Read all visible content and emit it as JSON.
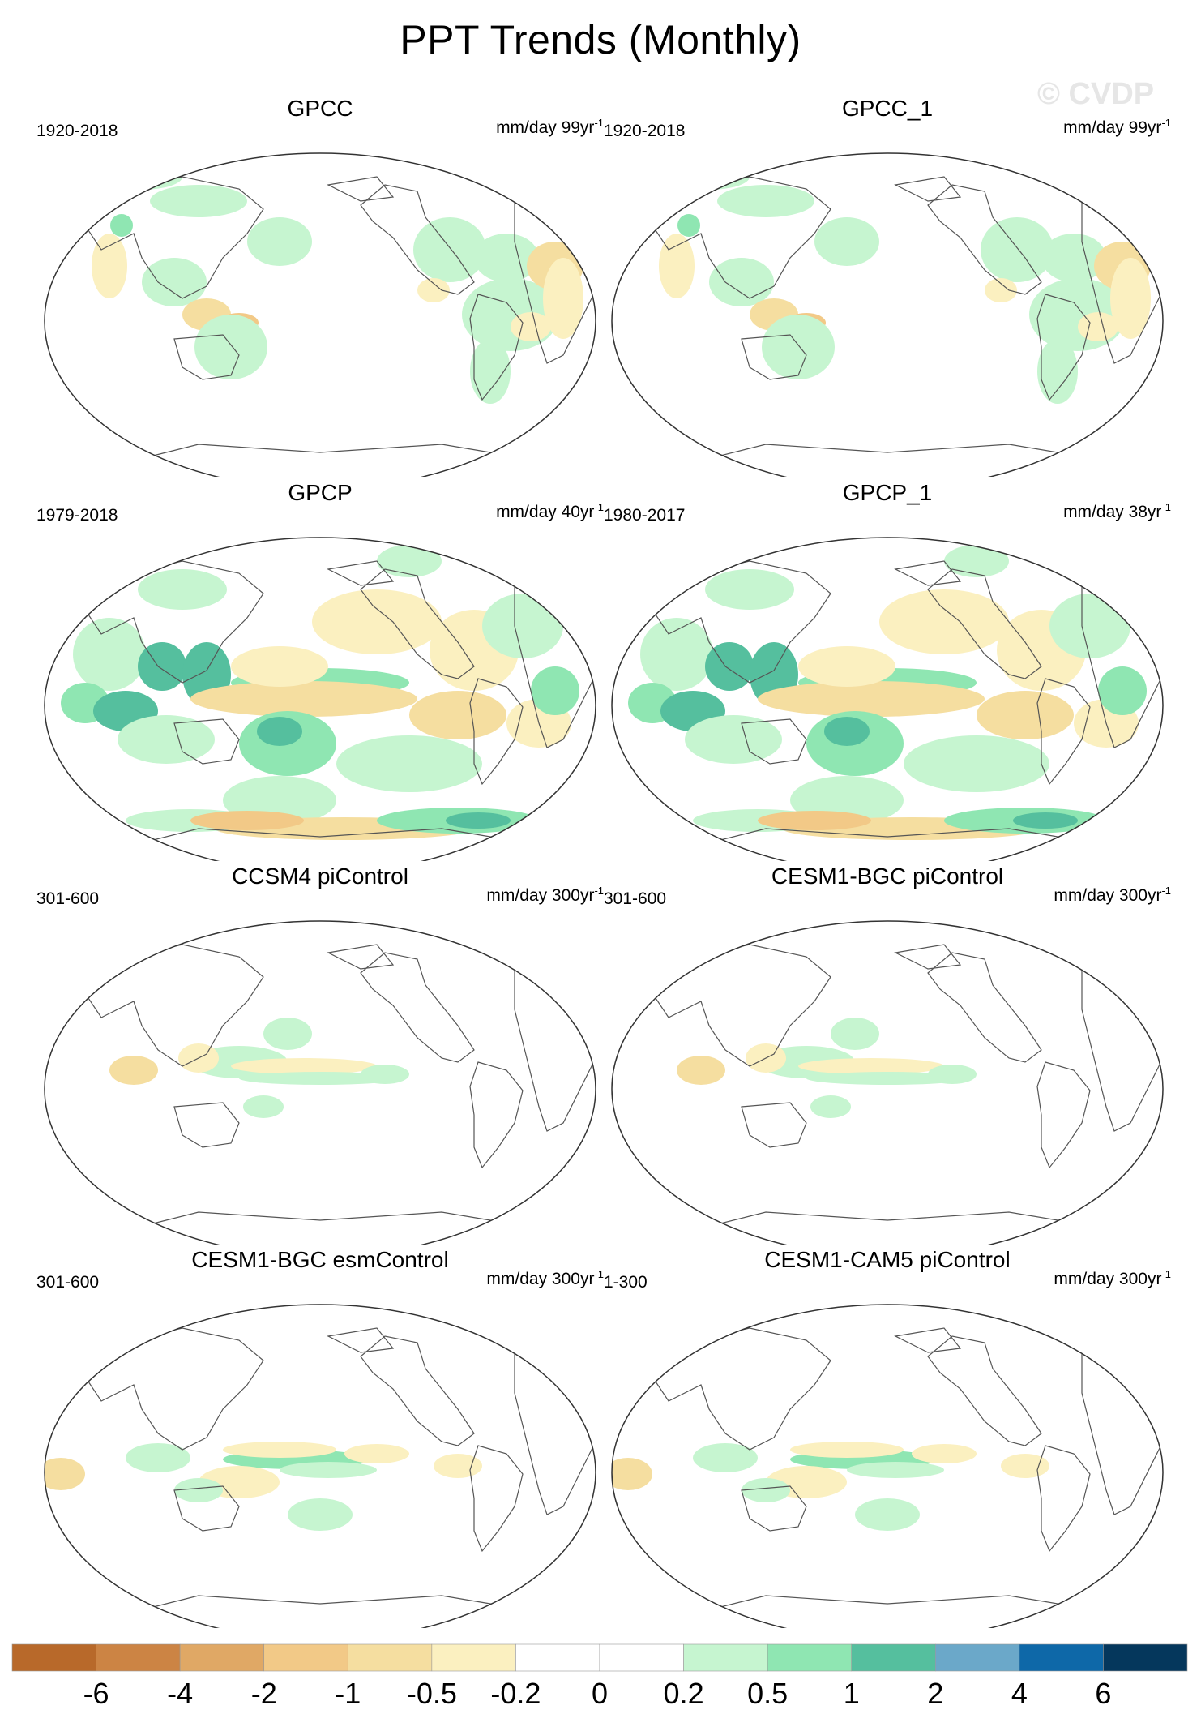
{
  "title": "PPT Trends (Monthly)",
  "watermark": "© CVDP",
  "panels": [
    {
      "title": "GPCC",
      "period": "1920-2018",
      "units": "mm/day 99yr",
      "units_sup": "-1",
      "pattern": "gpcc"
    },
    {
      "title": "GPCC_1",
      "period": "1920-2018",
      "units": "mm/day 99yr",
      "units_sup": "-1",
      "pattern": "gpcc"
    },
    {
      "title": "GPCP",
      "period": "1979-2018",
      "units": "mm/day 40yr",
      "units_sup": "-1",
      "pattern": "gpcp"
    },
    {
      "title": "GPCP_1",
      "period": "1980-2017",
      "units": "mm/day 38yr",
      "units_sup": "-1",
      "pattern": "gpcp"
    },
    {
      "title": "CCSM4 piControl",
      "period": "301-600",
      "units": "mm/day 300yr",
      "units_sup": "-1",
      "pattern": "control"
    },
    {
      "title": "CESM1-BGC piControl",
      "period": "301-600",
      "units": "mm/day 300yr",
      "units_sup": "-1",
      "pattern": "control"
    },
    {
      "title": "CESM1-BGC esmControl",
      "period": "301-600",
      "units": "mm/day 300yr",
      "units_sup": "-1",
      "pattern": "control2"
    },
    {
      "title": "CESM1-CAM5 piControl",
      "period": "1-300",
      "units": "mm/day 300yr",
      "units_sup": "-1",
      "pattern": "control2"
    }
  ],
  "colorbar": {
    "colors": [
      "#b8692a",
      "#cc8444",
      "#e0a865",
      "#f2c987",
      "#f5dea0",
      "#fbf0c0",
      "#ffffff",
      "#ffffff",
      "#c6f5d0",
      "#8fe6b2",
      "#55bf9e",
      "#6ba8c9",
      "#0e68a8",
      "#05375c"
    ],
    "labels": [
      "-6",
      "-4",
      "-2",
      "-1",
      "-0.5",
      "-0.2",
      "0",
      "0.2",
      "0.5",
      "1",
      "2",
      "4",
      "6"
    ]
  }
}
